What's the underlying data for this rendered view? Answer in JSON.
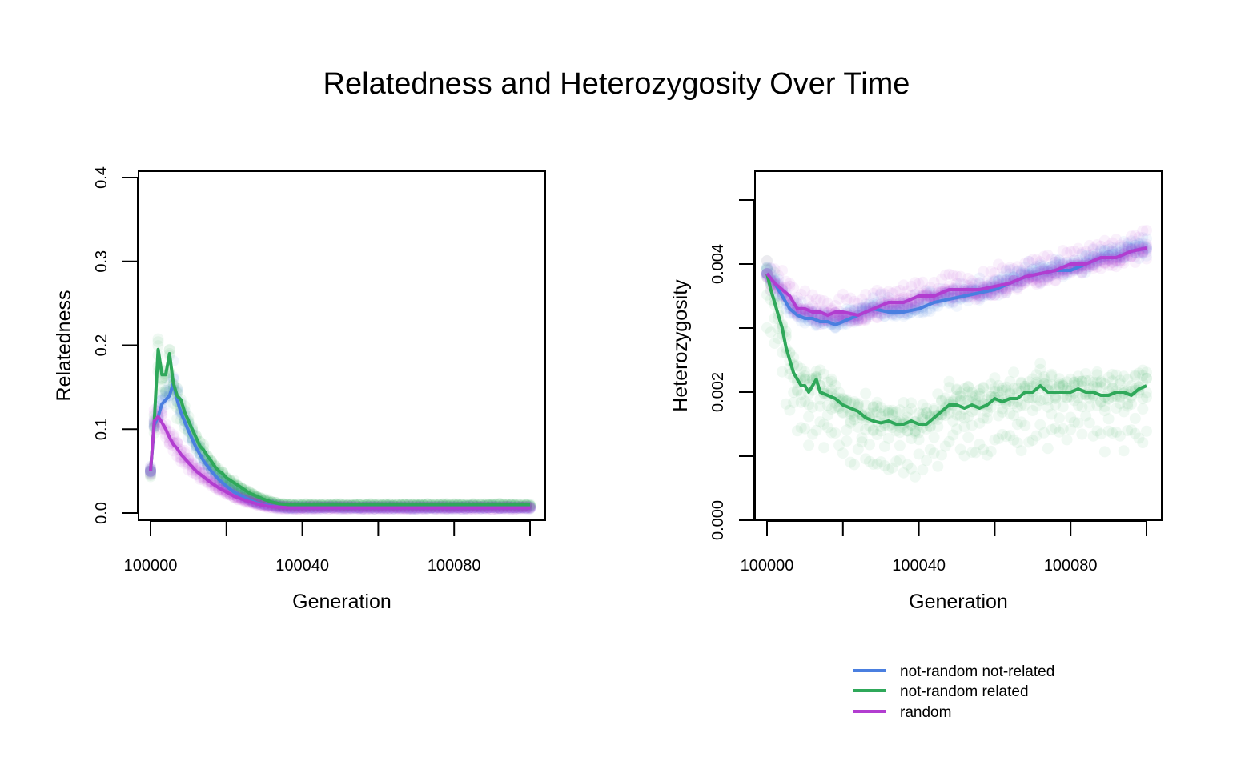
{
  "title": "Relatedness and Heterozygosity Over Time",
  "colors": {
    "not_random_not_related": "#4a7fe0",
    "not_random_related": "#2fa85a",
    "random": "#b23dd0"
  },
  "legend": {
    "position": "bottom-right",
    "entries": [
      {
        "label": "not-random not-related",
        "color": "#4a7fe0"
      },
      {
        "label": "not-random related",
        "color": "#2fa85a"
      },
      {
        "label": "random",
        "color": "#b23dd0"
      }
    ]
  },
  "chart_data": [
    {
      "type": "line",
      "xlabel": "Generation",
      "ylabel": "Relatedness",
      "xlim": [
        100000,
        100100
      ],
      "ylim": [
        0,
        0.4
      ],
      "xticks": [
        100000,
        100020,
        100040,
        100060,
        100080,
        100100
      ],
      "xticklabels": [
        "100000",
        "",
        "100040",
        "",
        "100080",
        ""
      ],
      "yticks": [
        0,
        0.1,
        0.2,
        0.3,
        0.4
      ],
      "yticklabels": [
        "0.0",
        "0.1",
        "0.2",
        "0.3",
        "0.4"
      ],
      "grid": false,
      "series": [
        {
          "name": "not-random not-related",
          "color": "#4a7fe0",
          "x": [
            100000,
            100001,
            100002,
            100003,
            100004,
            100005,
            100006,
            100007,
            100008,
            100010,
            100012,
            100014,
            100016,
            100018,
            100020,
            100022,
            100025,
            100028,
            100031,
            100034,
            100037,
            100040,
            100050,
            100060,
            100070,
            100080,
            100090,
            100100
          ],
          "y": [
            0.05,
            0.105,
            0.115,
            0.13,
            0.135,
            0.14,
            0.155,
            0.135,
            0.12,
            0.098,
            0.078,
            0.062,
            0.05,
            0.04,
            0.032,
            0.025,
            0.018,
            0.012,
            0.009,
            0.007,
            0.006,
            0.006,
            0.006,
            0.006,
            0.006,
            0.006,
            0.006,
            0.006
          ]
        },
        {
          "name": "not-random related",
          "color": "#2fa85a",
          "x": [
            100000,
            100001,
            100002,
            100003,
            100004,
            100005,
            100006,
            100007,
            100008,
            100009,
            100010,
            100011,
            100012,
            100013,
            100014,
            100015,
            100016,
            100017,
            100018,
            100019,
            100020,
            100022,
            100024,
            100026,
            100028,
            100030,
            100032,
            100034,
            100036,
            100038,
            100040,
            100050,
            100060,
            100070,
            100080,
            100090,
            100100
          ],
          "y": [
            0.05,
            0.11,
            0.195,
            0.165,
            0.165,
            0.19,
            0.155,
            0.14,
            0.135,
            0.12,
            0.11,
            0.1,
            0.09,
            0.08,
            0.075,
            0.068,
            0.062,
            0.055,
            0.05,
            0.047,
            0.042,
            0.036,
            0.03,
            0.024,
            0.02,
            0.016,
            0.013,
            0.011,
            0.01,
            0.01,
            0.01,
            0.01,
            0.01,
            0.01,
            0.01,
            0.01,
            0.01
          ]
        },
        {
          "name": "random",
          "color": "#b23dd0",
          "x": [
            100000,
            100001,
            100002,
            100003,
            100004,
            100005,
            100006,
            100007,
            100008,
            100010,
            100012,
            100014,
            100016,
            100018,
            100020,
            100022,
            100025,
            100028,
            100031,
            100034,
            100037,
            100040,
            100050,
            100060,
            100070,
            100080,
            100090,
            100100
          ],
          "y": [
            0.05,
            0.11,
            0.115,
            0.108,
            0.1,
            0.09,
            0.082,
            0.077,
            0.07,
            0.06,
            0.05,
            0.043,
            0.036,
            0.03,
            0.025,
            0.02,
            0.015,
            0.011,
            0.008,
            0.007,
            0.006,
            0.006,
            0.006,
            0.006,
            0.006,
            0.006,
            0.006,
            0.006
          ]
        }
      ]
    },
    {
      "type": "line",
      "xlabel": "Generation",
      "ylabel": "Heterozygosity",
      "xlim": [
        100000,
        100100
      ],
      "ylim": [
        0,
        0.005
      ],
      "xticks": [
        100000,
        100020,
        100040,
        100060,
        100080,
        100100
      ],
      "xticklabels": [
        "100000",
        "",
        "100040",
        "",
        "100080",
        ""
      ],
      "yticks": [
        0,
        0.001,
        0.002,
        0.003,
        0.004,
        0.005
      ],
      "yticklabels": [
        "0.000",
        "",
        "0.002",
        "",
        "0.004",
        ""
      ],
      "grid": false,
      "series": [
        {
          "name": "not-random not-related",
          "color": "#4a7fe0",
          "x": [
            100000,
            100002,
            100004,
            100006,
            100008,
            100010,
            100012,
            100014,
            100016,
            100018,
            100020,
            100024,
            100028,
            100032,
            100036,
            100040,
            100044,
            100048,
            100052,
            100056,
            100060,
            100064,
            100068,
            100072,
            100076,
            100080,
            100084,
            100088,
            100092,
            100096,
            100100
          ],
          "y": [
            0.00385,
            0.0037,
            0.0035,
            0.0033,
            0.0032,
            0.00315,
            0.00315,
            0.0031,
            0.0031,
            0.00305,
            0.0031,
            0.0032,
            0.0033,
            0.00325,
            0.00325,
            0.0033,
            0.0034,
            0.00345,
            0.0035,
            0.00355,
            0.0036,
            0.0037,
            0.0038,
            0.00385,
            0.0039,
            0.0039,
            0.004,
            0.0041,
            0.0041,
            0.0042,
            0.00425
          ]
        },
        {
          "name": "not-random related",
          "color": "#2fa85a",
          "x": [
            100000,
            100001,
            100002,
            100003,
            100004,
            100005,
            100006,
            100007,
            100008,
            100009,
            100010,
            100011,
            100012,
            100013,
            100014,
            100016,
            100018,
            100020,
            100022,
            100024,
            100026,
            100028,
            100030,
            100032,
            100034,
            100036,
            100038,
            100040,
            100042,
            100044,
            100046,
            100048,
            100050,
            100052,
            100054,
            100056,
            100058,
            100060,
            100062,
            100064,
            100066,
            100068,
            100070,
            100072,
            100074,
            100076,
            100078,
            100080,
            100082,
            100084,
            100086,
            100088,
            100090,
            100092,
            100094,
            100096,
            100098,
            100100
          ],
          "y": [
            0.00385,
            0.0036,
            0.0034,
            0.0032,
            0.003,
            0.0027,
            0.0025,
            0.0023,
            0.0022,
            0.0021,
            0.0021,
            0.002,
            0.0021,
            0.0022,
            0.002,
            0.00195,
            0.0019,
            0.0018,
            0.00175,
            0.0017,
            0.0016,
            0.00155,
            0.00152,
            0.00155,
            0.0015,
            0.0015,
            0.00155,
            0.0015,
            0.0015,
            0.0016,
            0.0017,
            0.0018,
            0.0018,
            0.00175,
            0.0018,
            0.00175,
            0.0018,
            0.0019,
            0.00185,
            0.0019,
            0.0019,
            0.002,
            0.002,
            0.0021,
            0.002,
            0.002,
            0.002,
            0.002,
            0.00205,
            0.002,
            0.002,
            0.00195,
            0.00195,
            0.002,
            0.002,
            0.00195,
            0.00205,
            0.0021
          ]
        },
        {
          "name": "random",
          "color": "#b23dd0",
          "x": [
            100000,
            100002,
            100004,
            100006,
            100008,
            100010,
            100012,
            100014,
            100016,
            100018,
            100020,
            100024,
            100028,
            100032,
            100036,
            100040,
            100044,
            100048,
            100052,
            100056,
            100060,
            100064,
            100068,
            100072,
            100076,
            100080,
            100084,
            100088,
            100092,
            100096,
            100100
          ],
          "y": [
            0.00385,
            0.0037,
            0.0036,
            0.0035,
            0.0033,
            0.0033,
            0.00325,
            0.00325,
            0.0032,
            0.00325,
            0.00325,
            0.0032,
            0.0033,
            0.0034,
            0.0034,
            0.0035,
            0.0035,
            0.0036,
            0.0036,
            0.0036,
            0.00365,
            0.0037,
            0.0038,
            0.00385,
            0.0039,
            0.004,
            0.004,
            0.0041,
            0.0041,
            0.0042,
            0.00425
          ]
        }
      ]
    }
  ]
}
